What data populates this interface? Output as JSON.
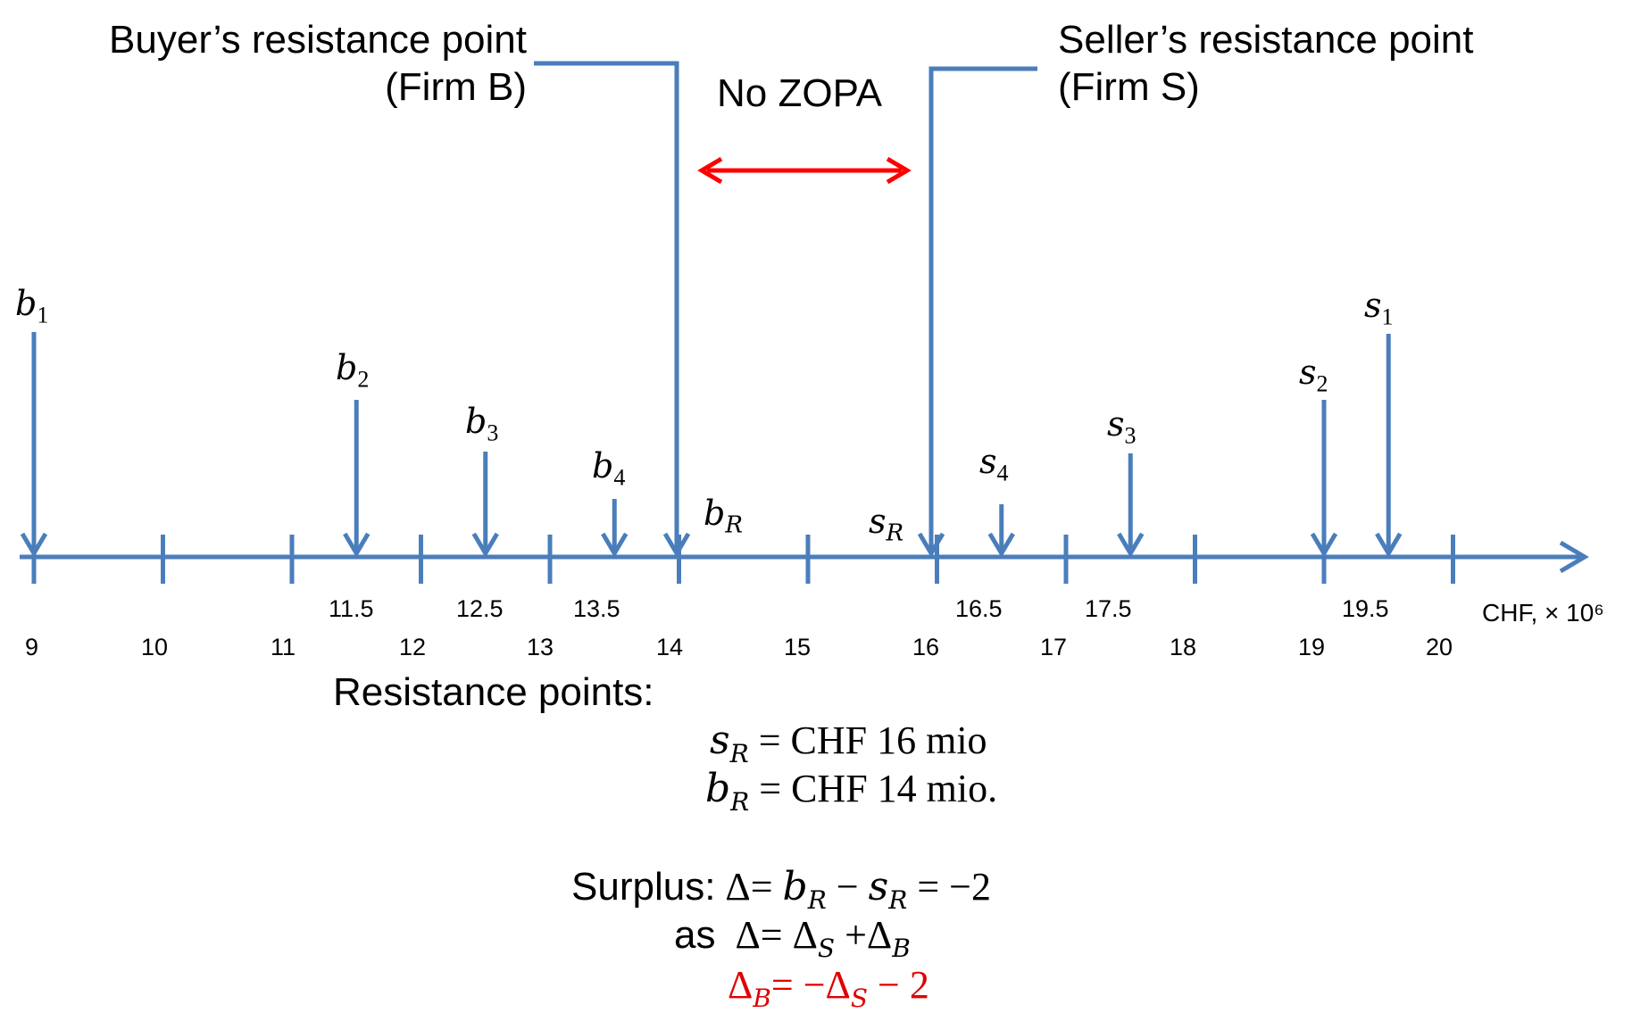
{
  "buyer_label": {
    "line1": "Buyer’s resistance point",
    "line2": "(Firm B)"
  },
  "seller_label": {
    "line1": "Seller’s resistance point",
    "line2": "(Firm S)"
  },
  "no_zopa": "No ZOPA",
  "axis": {
    "unit_label": "CHF, × 10⁶",
    "ticks": [
      "9",
      "10",
      "11",
      "12",
      "13",
      "14",
      "15",
      "16",
      "17",
      "18",
      "19",
      "20"
    ],
    "half_ticks": [
      "11.5",
      "12.5",
      "13.5",
      "16.5",
      "17.5",
      "19.5"
    ]
  },
  "offers": {
    "b1": {
      "sym": "b",
      "sub": "1",
      "value": 9
    },
    "b2": {
      "sym": "b",
      "sub": "2",
      "value": 11.5
    },
    "b3": {
      "sym": "b",
      "sub": "3",
      "value": 12.5
    },
    "b4": {
      "sym": "b",
      "sub": "4",
      "value": 13.5
    },
    "bR": {
      "sym": "b",
      "sub": "R",
      "value": 14
    },
    "sR": {
      "sym": "s",
      "sub": "R",
      "value": 16
    },
    "s4": {
      "sym": "s",
      "sub": "4",
      "value": 16.5
    },
    "s3": {
      "sym": "s",
      "sub": "3",
      "value": 17.5
    },
    "s2": {
      "sym": "s",
      "sub": "2",
      "value": 19
    },
    "s1": {
      "sym": "s",
      "sub": "1",
      "value": 19.5
    }
  },
  "resistance": {
    "heading": "Resistance points:",
    "sR_rhs": "= CHF 16 mio",
    "bR_rhs": "= CHF 14 mio."
  },
  "surplus": {
    "prefix": "Surplus:",
    "delta": "Δ",
    "eq": "=",
    "minus": "−",
    "result": "= −2",
    "as": "as",
    "plus": "+",
    "last_rhs": "− 2"
  },
  "colors": {
    "axis": "#4a7ebb",
    "zopa_arrow": "#ff0000",
    "red_text": "#e00000"
  }
}
